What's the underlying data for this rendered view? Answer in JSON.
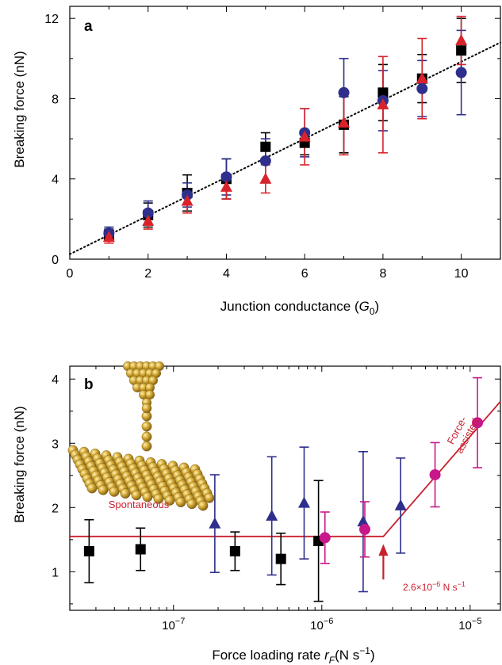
{
  "colors": {
    "black": "#000000",
    "blue": "#2e2f8c",
    "red": "#d9232a",
    "magenta": "#c8178a",
    "fit_line": "#c8202e",
    "gold": "#c9a227"
  },
  "chart_data": [
    {
      "type": "scatter",
      "panel_label": "a",
      "xlabel": "Junction conductance",
      "xlabel_symbol": "G",
      "xlabel_sub": "0",
      "ylabel": "Breaking force (nN)",
      "xlim": [
        0,
        11
      ],
      "ylim": [
        0,
        12.6
      ],
      "xticks": [
        0,
        2,
        4,
        6,
        8,
        10
      ],
      "yticks": [
        0,
        4,
        8,
        12
      ],
      "grid": false,
      "fit_line": {
        "style": "dotted",
        "x": [
          0,
          11
        ],
        "y": [
          0.25,
          10.8
        ]
      },
      "series": [
        {
          "marker": "square",
          "color": "#000000",
          "x": [
            1,
            2,
            3,
            4,
            5,
            6,
            7,
            8,
            9,
            10
          ],
          "y": [
            1.2,
            2.2,
            3.3,
            4.0,
            5.6,
            5.8,
            6.7,
            8.3,
            9.0,
            10.4
          ],
          "err": [
            0.3,
            0.6,
            0.9,
            1.0,
            0.7,
            0.6,
            1.4,
            1.4,
            1.2,
            1.6
          ]
        },
        {
          "marker": "circle",
          "color": "#2e2f8c",
          "x": [
            1,
            2,
            3,
            4,
            5,
            6,
            7,
            8,
            9,
            10
          ],
          "y": [
            1.3,
            2.3,
            3.2,
            4.1,
            4.9,
            6.3,
            8.3,
            7.9,
            8.5,
            9.3
          ],
          "err": [
            0.3,
            0.6,
            0.6,
            0.9,
            1.1,
            1.2,
            1.7,
            1.5,
            1.4,
            2.1
          ]
        },
        {
          "marker": "triangle",
          "color": "#d9232a",
          "x": [
            1,
            2,
            3,
            4,
            5,
            6,
            7,
            8,
            9,
            10
          ],
          "y": [
            1.1,
            1.9,
            2.9,
            3.6,
            4.0,
            6.1,
            6.8,
            7.7,
            9.0,
            10.9
          ],
          "err": [
            0.3,
            0.4,
            0.6,
            0.6,
            0.7,
            1.4,
            1.6,
            2.4,
            2.0,
            1.2
          ]
        }
      ]
    },
    {
      "type": "scatter",
      "panel_label": "b",
      "xscale": "log",
      "xlabel": "Force loading rate",
      "xlabel_symbol": "r",
      "xlabel_sub": "F",
      "xlabel_units": "(N s",
      "xlabel_units_sup": "−1",
      "xlabel_units_end": ")",
      "ylabel": "Breaking force (nN)",
      "xlim": [
        2e-08,
        1.6e-05
      ],
      "ylim": [
        0.4,
        4.2
      ],
      "xticks": [
        1e-07,
        1e-06,
        1e-05
      ],
      "xtick_labels": [
        {
          "base": "10",
          "exp": "−7"
        },
        {
          "base": "10",
          "exp": "−6"
        },
        {
          "base": "10",
          "exp": "−5"
        }
      ],
      "yticks": [
        1,
        2,
        3,
        4
      ],
      "grid": false,
      "series": [
        {
          "marker": "square",
          "color": "#000000",
          "x": [
            2.7e-08,
            6e-08,
            2.6e-07,
            5.3e-07,
            9.5e-07
          ],
          "y": [
            1.32,
            1.35,
            1.32,
            1.2,
            1.48
          ],
          "err": [
            0.49,
            0.33,
            0.3,
            0.4,
            0.94
          ]
        },
        {
          "marker": "triangle",
          "color": "#2e2f8c",
          "x": [
            1.9e-07,
            4.6e-07,
            7.6e-07,
            1.9e-06,
            3.4e-06
          ],
          "y": [
            1.75,
            1.87,
            2.07,
            1.78,
            2.03
          ],
          "err": [
            0.76,
            0.92,
            0.87,
            1.09,
            0.74
          ]
        },
        {
          "marker": "circle",
          "color": "#c8178a",
          "x": [
            1.05e-06,
            1.95e-06,
            5.8e-06,
            1.12e-05
          ],
          "y": [
            1.53,
            1.66,
            2.51,
            3.32
          ],
          "err": [
            0.4,
            0.43,
            0.5,
            0.7
          ]
        }
      ],
      "fit_line": {
        "x": [
          2e-08,
          2.6e-06,
          1.6e-05
        ],
        "y": [
          1.55,
          1.55,
          3.65
        ]
      },
      "arrow_x": 2.6e-06,
      "annotation_rate": {
        "mantissa": "2.6×10",
        "exp": "−6",
        "unit": " N s",
        "unit_exp": "−1"
      },
      "label_force_assisted": [
        "Force-",
        "assisted"
      ],
      "label_spontaneous": "Spontaneous"
    }
  ]
}
